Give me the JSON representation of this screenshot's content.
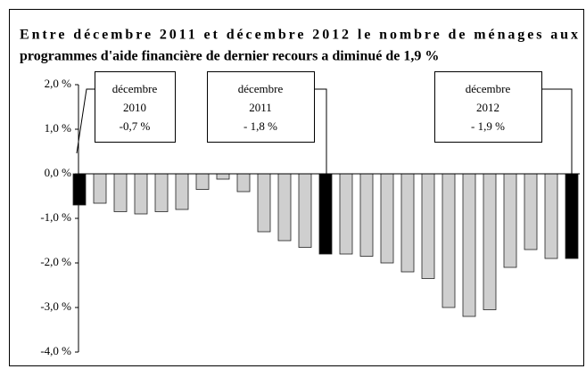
{
  "chart_data": {
    "type": "bar",
    "title": [
      "Entre décembre 2011 et décembre 2012 le nombre de ménages aux",
      "programmes d'aide financière de dernier recours a diminué de 1,9 %"
    ],
    "values": [
      -0.7,
      -0.66,
      -0.85,
      -0.9,
      -0.85,
      -0.8,
      -0.35,
      -0.12,
      -0.4,
      -1.3,
      -1.5,
      -1.65,
      -1.8,
      -1.8,
      -1.85,
      -2.0,
      -2.2,
      -2.35,
      -3.0,
      -3.2,
      -3.05,
      -2.1,
      -1.7,
      -1.9,
      -1.9
    ],
    "colors": [
      "#000000",
      "#cfcfcf",
      "#cfcfcf",
      "#cfcfcf",
      "#cfcfcf",
      "#cfcfcf",
      "#cfcfcf",
      "#cfcfcf",
      "#cfcfcf",
      "#cfcfcf",
      "#cfcfcf",
      "#cfcfcf",
      "#000000",
      "#cfcfcf",
      "#cfcfcf",
      "#cfcfcf",
      "#cfcfcf",
      "#cfcfcf",
      "#cfcfcf",
      "#cfcfcf",
      "#cfcfcf",
      "#cfcfcf",
      "#cfcfcf",
      "#cfcfcf",
      "#000000"
    ],
    "ylim": [
      -4.0,
      2.0
    ],
    "yticks": [
      {
        "value": 2.0,
        "label": "2,0 %"
      },
      {
        "value": 1.0,
        "label": "1,0 %"
      },
      {
        "value": 0.0,
        "label": "0,0 %"
      },
      {
        "value": -1.0,
        "label": "-1,0 %"
      },
      {
        "value": -2.0,
        "label": "-2,0 %"
      },
      {
        "value": -3.0,
        "label": "-3,0 %"
      },
      {
        "value": -4.0,
        "label": "-4,0 %"
      }
    ],
    "annotations": [
      {
        "lines": [
          "décembre",
          "2010",
          "-0,7 %"
        ]
      },
      {
        "lines": [
          "décembre",
          "2011",
          "- 1,8 %"
        ]
      },
      {
        "lines": [
          "décembre",
          "2012",
          "- 1,9 %"
        ]
      }
    ]
  }
}
